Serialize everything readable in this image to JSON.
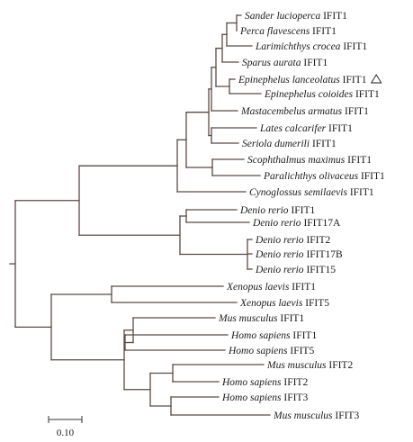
{
  "leaves": [
    {
      "id": "sl",
      "species": "Sander lucioperca",
      "gene": "IFIT1"
    },
    {
      "id": "pf",
      "species": "Perca flavescens",
      "gene": "IFIT1"
    },
    {
      "id": "lc",
      "species": "Larimichthys crocea",
      "gene": "IFIT1"
    },
    {
      "id": "sa",
      "species": "Sparus aurata",
      "gene": "IFIT1"
    },
    {
      "id": "el",
      "species": "Epinephelus lanceolatus",
      "gene": "IFIT1",
      "marker": "△"
    },
    {
      "id": "ec",
      "species": "Epinephelus coioides",
      "gene": "IFIT1"
    },
    {
      "id": "ma",
      "species": "Mastacembelus armatus",
      "gene": "IFIT1"
    },
    {
      "id": "lca",
      "species": "Lates calcarifer",
      "gene": "IFIT1"
    },
    {
      "id": "sd",
      "species": "Seriola dumerili",
      "gene": "IFIT1"
    },
    {
      "id": "sm",
      "species": "Scophthalmus maximus",
      "gene": "IFIT1"
    },
    {
      "id": "po",
      "species": "Paralichthys olivaceus",
      "gene": "IFIT1"
    },
    {
      "id": "cs",
      "species": "Cynoglossus semilaevis",
      "gene": "IFIT1"
    },
    {
      "id": "dr1",
      "species": "Denio rerio",
      "gene": "IFIT1"
    },
    {
      "id": "dr17a",
      "species": "Denio rerio",
      "gene": "IFIT17A"
    },
    {
      "id": "dr2",
      "species": "Denio rerio",
      "gene": "IFIT2"
    },
    {
      "id": "dr17b",
      "species": "Denio rerio",
      "gene": "IFIT17B"
    },
    {
      "id": "dr15",
      "species": "Denio rerio",
      "gene": "IFIT15"
    },
    {
      "id": "xl1",
      "species": "Xenopus laevis",
      "gene": "IFIT1"
    },
    {
      "id": "xl5",
      "species": "Xenopus laevis",
      "gene": "IFIT5"
    },
    {
      "id": "mm1",
      "species": "Mus musculus",
      "gene": "IFIT1"
    },
    {
      "id": "hs1",
      "species": "Homo sapiens",
      "gene": "IFIT1"
    },
    {
      "id": "hs5",
      "species": "Homo sapiens",
      "gene": "IFIT5"
    },
    {
      "id": "mm2",
      "species": "Mus musculus",
      "gene": "IFIT2"
    },
    {
      "id": "hs2",
      "species": "Homo sapiens",
      "gene": "IFIT2"
    },
    {
      "id": "hs3",
      "species": "Homo sapiens",
      "gene": "IFIT3"
    },
    {
      "id": "mm3",
      "species": "Mus musculus",
      "gene": "IFIT3"
    }
  ],
  "scale_bar": {
    "label": "0.10",
    "length": 0.1
  },
  "colors": {
    "branch": "#5a4a45",
    "text": "#1a1a1a"
  }
}
